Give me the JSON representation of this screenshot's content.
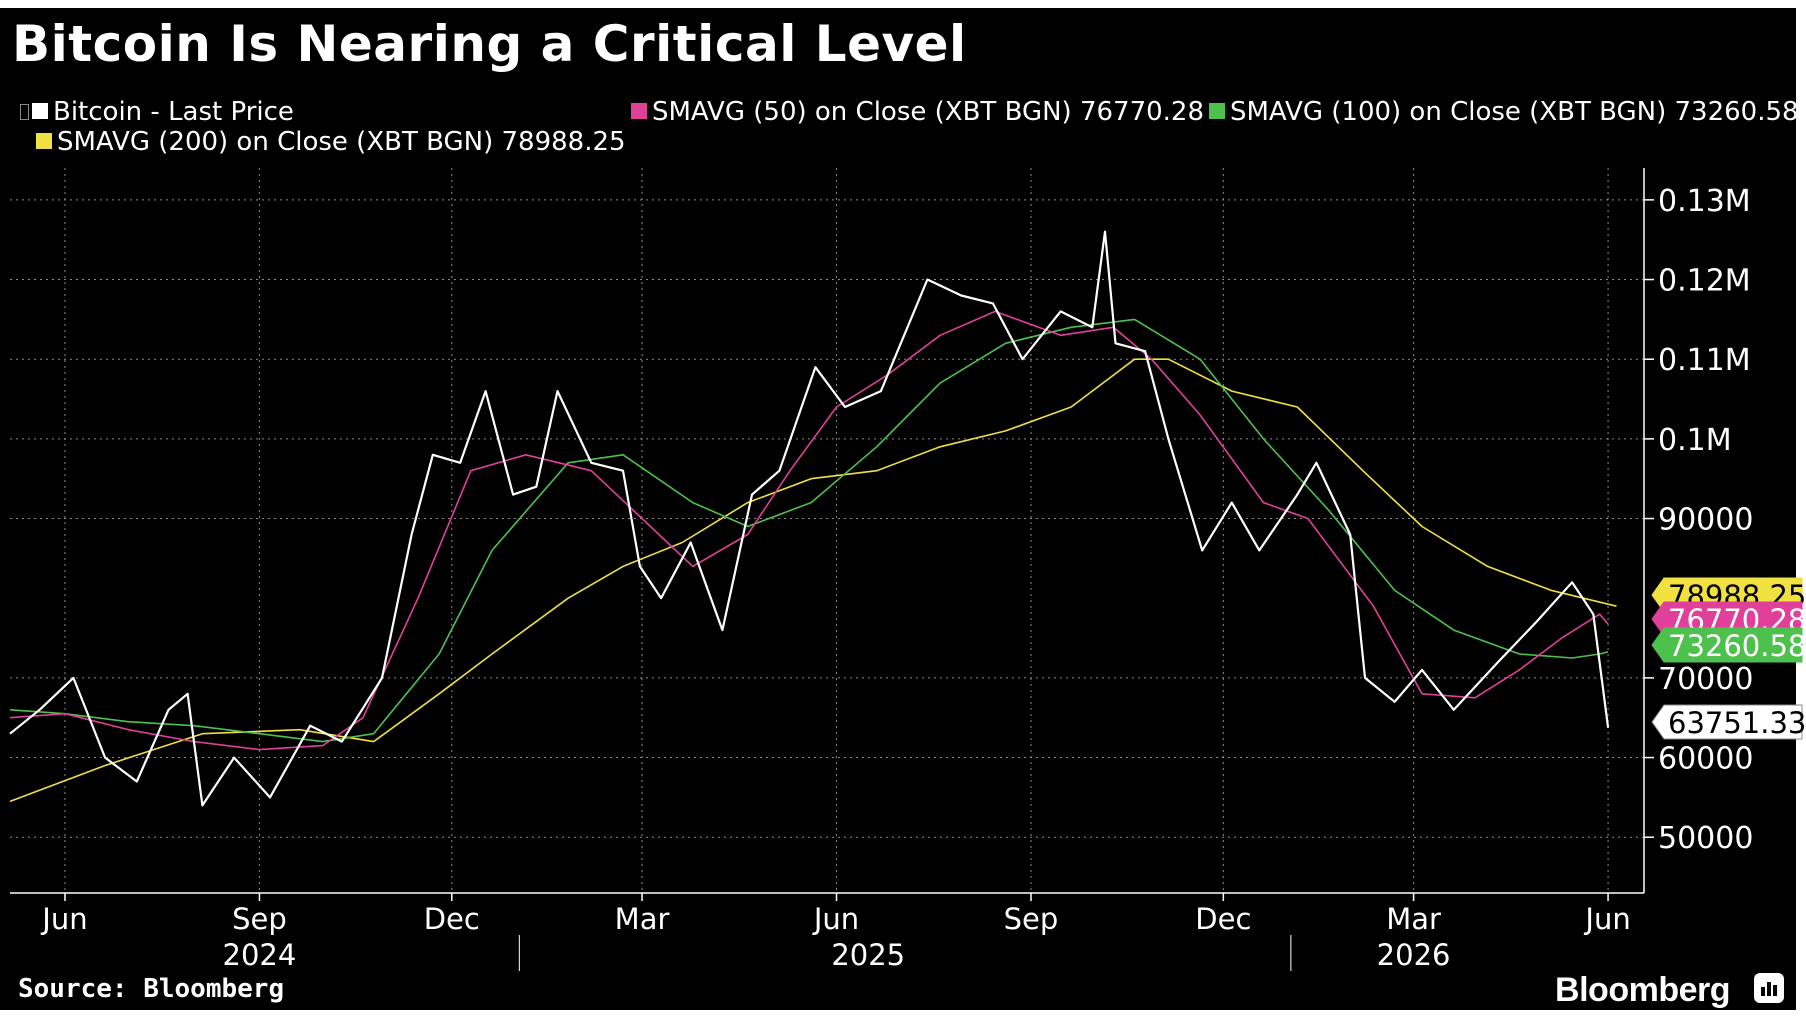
{
  "title": "Bitcoin Is Nearing a Critical Level",
  "source": "Source: Bloomberg",
  "brand": "Bloomberg",
  "brand_icon": "bloomberg-chart-icon",
  "legend": [
    {
      "label": "Bitcoin - Last Price",
      "color": "#ffffff"
    },
    {
      "label": "SMAVG (50)  on Close (XBT BGN) 76770.28",
      "color": "#e0409a"
    },
    {
      "label": "SMAVG (100)  on Close (XBT BGN) 73260.58",
      "color": "#4ec04e"
    },
    {
      "label": "SMAVG (200)  on Close (XBT BGN) 78988.25",
      "color": "#f0e040"
    }
  ],
  "chart_data": {
    "type": "line",
    "title": "Bitcoin Is Nearing a Critical Level",
    "y_tick_labels": [
      "50000",
      "60000",
      "70000",
      "90000",
      "0.1M",
      "0.11M",
      "0.12M",
      "0.13M"
    ],
    "y_ticks": [
      50000,
      60000,
      70000,
      90000,
      100000,
      110000,
      120000,
      130000
    ],
    "ylim": [
      43000,
      134000
    ],
    "x_tick_labels": [
      "Jun",
      "Sep",
      "Dec",
      "Mar",
      "Jun",
      "Sep",
      "Dec",
      "Mar",
      "Jun"
    ],
    "x_ticks": [
      "2024-06-01",
      "2024-09-01",
      "2024-12-01",
      "2025-03-01",
      "2025-06-01",
      "2025-09-01",
      "2025-12-01",
      "2026-03-01",
      "2026-06-01"
    ],
    "year_labels": [
      {
        "label": "2024",
        "center": "2024-09-01"
      },
      {
        "label": "2025",
        "center": "2025-06-16"
      },
      {
        "label": "2026",
        "center": "2026-03-01"
      }
    ],
    "year_boundaries": [
      "2025-01-01",
      "2026-01-01"
    ],
    "xlim": [
      "2024-05-06",
      "2026-06-18"
    ],
    "grid": true,
    "legend_position": "top",
    "series": [
      {
        "name": "Bitcoin - Last Price",
        "color": "#ffffff",
        "last_value": "63751.33",
        "x": [
          "2024-05-06",
          "2024-05-20",
          "2024-06-05",
          "2024-06-20",
          "2024-07-05",
          "2024-07-20",
          "2024-07-29",
          "2024-08-05",
          "2024-08-20",
          "2024-09-06",
          "2024-09-25",
          "2024-10-10",
          "2024-10-29",
          "2024-11-12",
          "2024-11-22",
          "2024-12-05",
          "2024-12-17",
          "2024-12-30",
          "2025-01-10",
          "2025-01-20",
          "2025-02-05",
          "2025-02-20",
          "2025-02-28",
          "2025-03-10",
          "2025-03-24",
          "2025-04-08",
          "2025-04-22",
          "2025-05-05",
          "2025-05-22",
          "2025-06-05",
          "2025-06-22",
          "2025-07-14",
          "2025-07-30",
          "2025-08-14",
          "2025-08-28",
          "2025-09-15",
          "2025-09-30",
          "2025-10-06",
          "2025-10-11",
          "2025-10-25",
          "2025-11-05",
          "2025-11-21",
          "2025-12-05",
          "2025-12-18",
          "2026-01-05",
          "2026-01-14",
          "2026-01-30",
          "2026-02-06",
          "2026-02-20",
          "2026-03-05",
          "2026-03-20",
          "2026-04-10",
          "2026-04-28",
          "2026-05-15",
          "2026-05-25",
          "2026-06-01"
        ],
        "values": [
          63000,
          66000,
          70000,
          60000,
          57000,
          66000,
          68000,
          54000,
          60000,
          55000,
          64000,
          62000,
          70000,
          88000,
          98000,
          97000,
          106000,
          93000,
          94000,
          106000,
          97000,
          96000,
          84000,
          80000,
          87000,
          76000,
          93000,
          96000,
          109000,
          104000,
          106000,
          120000,
          118000,
          117000,
          110000,
          116000,
          114000,
          126000,
          112000,
          111000,
          100000,
          86000,
          92000,
          86000,
          93000,
          97000,
          88000,
          70000,
          67000,
          71000,
          66000,
          72000,
          77000,
          82000,
          78000,
          63751
        ]
      },
      {
        "name": "SMAVG (50)  on Close (XBT BGN) 76770.28",
        "color": "#e0409a",
        "last_value": "76770.28",
        "x": [
          "2024-05-06",
          "2024-06-01",
          "2024-07-01",
          "2024-08-01",
          "2024-09-01",
          "2024-10-01",
          "2024-10-20",
          "2024-11-15",
          "2024-12-10",
          "2025-01-05",
          "2025-02-05",
          "2025-03-01",
          "2025-03-25",
          "2025-04-20",
          "2025-05-10",
          "2025-06-01",
          "2025-06-25",
          "2025-07-20",
          "2025-08-15",
          "2025-09-15",
          "2025-10-10",
          "2025-10-28",
          "2025-11-20",
          "2025-12-20",
          "2026-01-10",
          "2026-02-10",
          "2026-03-05",
          "2026-03-30",
          "2026-04-20",
          "2026-05-10",
          "2026-05-28",
          "2026-06-01"
        ],
        "values": [
          65000,
          65500,
          63500,
          62000,
          61000,
          61500,
          65000,
          80000,
          96000,
          98000,
          96000,
          90000,
          84000,
          88000,
          96000,
          104000,
          108000,
          113000,
          116000,
          113000,
          114000,
          110000,
          103000,
          92000,
          90000,
          79000,
          68000,
          67500,
          71000,
          75000,
          78000,
          76770
        ]
      },
      {
        "name": "SMAVG (100)  on Close (XBT BGN) 73260.58",
        "color": "#4ec04e",
        "last_value": "73260.58",
        "x": [
          "2024-05-06",
          "2024-06-01",
          "2024-07-01",
          "2024-08-01",
          "2024-09-01",
          "2024-10-01",
          "2024-10-25",
          "2024-11-25",
          "2024-12-20",
          "2025-01-25",
          "2025-02-20",
          "2025-03-25",
          "2025-04-20",
          "2025-05-20",
          "2025-06-20",
          "2025-07-20",
          "2025-08-20",
          "2025-09-20",
          "2025-10-20",
          "2025-11-20",
          "2025-12-20",
          "2026-01-20",
          "2026-02-20",
          "2026-03-20",
          "2026-04-20",
          "2026-05-15",
          "2026-05-28",
          "2026-06-01"
        ],
        "values": [
          66000,
          65500,
          64500,
          64000,
          63000,
          62000,
          63000,
          73000,
          86000,
          97000,
          98000,
          92000,
          89000,
          92000,
          99000,
          107000,
          112000,
          114000,
          115000,
          110000,
          100000,
          91000,
          81000,
          76000,
          73000,
          72500,
          73000,
          73260
        ]
      },
      {
        "name": "SMAVG (200)  on Close (XBT BGN) 78988.25",
        "color": "#f0e040",
        "last_value": "78988.25",
        "x": [
          "2024-05-06",
          "2024-06-20",
          "2024-08-05",
          "2024-09-20",
          "2024-10-25",
          "2024-11-25",
          "2024-12-20",
          "2025-01-25",
          "2025-02-20",
          "2025-03-20",
          "2025-04-20",
          "2025-05-20",
          "2025-06-20",
          "2025-07-20",
          "2025-08-20",
          "2025-09-20",
          "2025-10-20",
          "2025-11-05",
          "2025-12-05",
          "2026-01-05",
          "2026-02-05",
          "2026-03-05",
          "2026-04-05",
          "2026-05-05",
          "2026-06-05"
        ],
        "values": [
          54500,
          59000,
          63000,
          63500,
          62000,
          68000,
          73000,
          80000,
          84000,
          87000,
          92000,
          95000,
          96000,
          99000,
          101000,
          104000,
          110000,
          110000,
          106000,
          104000,
          96000,
          89000,
          84000,
          81000,
          79000
        ]
      }
    ]
  }
}
